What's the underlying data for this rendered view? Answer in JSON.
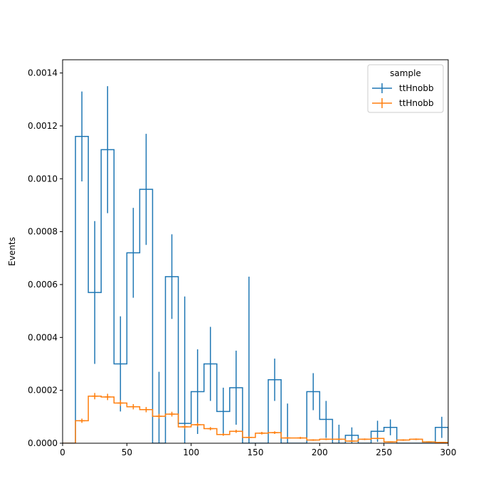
{
  "chart_data": {
    "type": "histogram",
    "xlabel": "",
    "ylabel": "Events",
    "xlim": [
      0,
      300
    ],
    "ylim": [
      0,
      0.00145
    ],
    "xticks": [
      0,
      50,
      100,
      150,
      200,
      250,
      300
    ],
    "yticks": [
      0,
      0.0002,
      0.0004,
      0.0006,
      0.0008,
      0.001,
      0.0012,
      0.0014
    ],
    "ytick_labels": [
      "0.0000",
      "0.0002",
      "0.0004",
      "0.0006",
      "0.0008",
      "0.0010",
      "0.0012",
      "0.0014"
    ],
    "grid": false,
    "legend": {
      "title": "sample",
      "position": "top-right"
    },
    "bin_edges": [
      0,
      10,
      20,
      30,
      40,
      50,
      60,
      70,
      80,
      90,
      100,
      110,
      120,
      130,
      140,
      150,
      160,
      170,
      180,
      190,
      200,
      210,
      220,
      230,
      240,
      250,
      260,
      270,
      280,
      290,
      300
    ],
    "series": [
      {
        "name": "ttHnobb",
        "color": "#1f77b4",
        "values": [
          0,
          0.00116,
          0.00057,
          0.00111,
          0.0003,
          0.00072,
          0.00096,
          0,
          0.00063,
          7.5e-05,
          0.000195,
          0.0003,
          0.00012,
          0.00021,
          0,
          0,
          0.00024,
          0,
          0,
          0.000195,
          9e-05,
          0,
          3e-05,
          0,
          4.5e-05,
          6e-05,
          0,
          0,
          0,
          6e-05
        ],
        "errors": [
          0,
          0.00017,
          0.00027,
          0.00024,
          0.00018,
          0.00017,
          0.00021,
          0.00027,
          0.00016,
          0.00048,
          0.00016,
          0.00014,
          9e-05,
          0.00014,
          0.00063,
          0,
          8e-05,
          0.00015,
          0,
          7e-05,
          7e-05,
          7e-05,
          3e-05,
          0,
          4e-05,
          3e-05,
          0,
          0,
          0,
          4e-05
        ]
      },
      {
        "name": "ttHnobb",
        "color": "#ff7f0e",
        "values": [
          0,
          8.5e-05,
          0.000178,
          0.000175,
          0.000152,
          0.000138,
          0.000127,
          0.000102,
          0.00011,
          6.2e-05,
          7e-05,
          5.5e-05,
          3.3e-05,
          4.5e-05,
          2.2e-05,
          3.8e-05,
          4e-05,
          2e-05,
          2e-05,
          1.2e-05,
          1.5e-05,
          1.5e-05,
          8e-06,
          1.5e-05,
          1.8e-05,
          5e-06,
          1.2e-05,
          1.5e-05,
          5e-06,
          3e-06
        ],
        "errors": [
          0,
          8e-06,
          1.2e-05,
          1.2e-05,
          1.1e-05,
          1e-05,
          1e-05,
          9e-06,
          9e-06,
          7e-06,
          7e-06,
          6e-06,
          5e-06,
          6e-06,
          4e-06,
          5e-06,
          5e-06,
          4e-06,
          4e-06,
          3e-06,
          3e-06,
          3e-06,
          3e-06,
          3e-06,
          3e-06,
          2e-06,
          3e-06,
          3e-06,
          2e-06,
          2e-06
        ]
      }
    ]
  }
}
